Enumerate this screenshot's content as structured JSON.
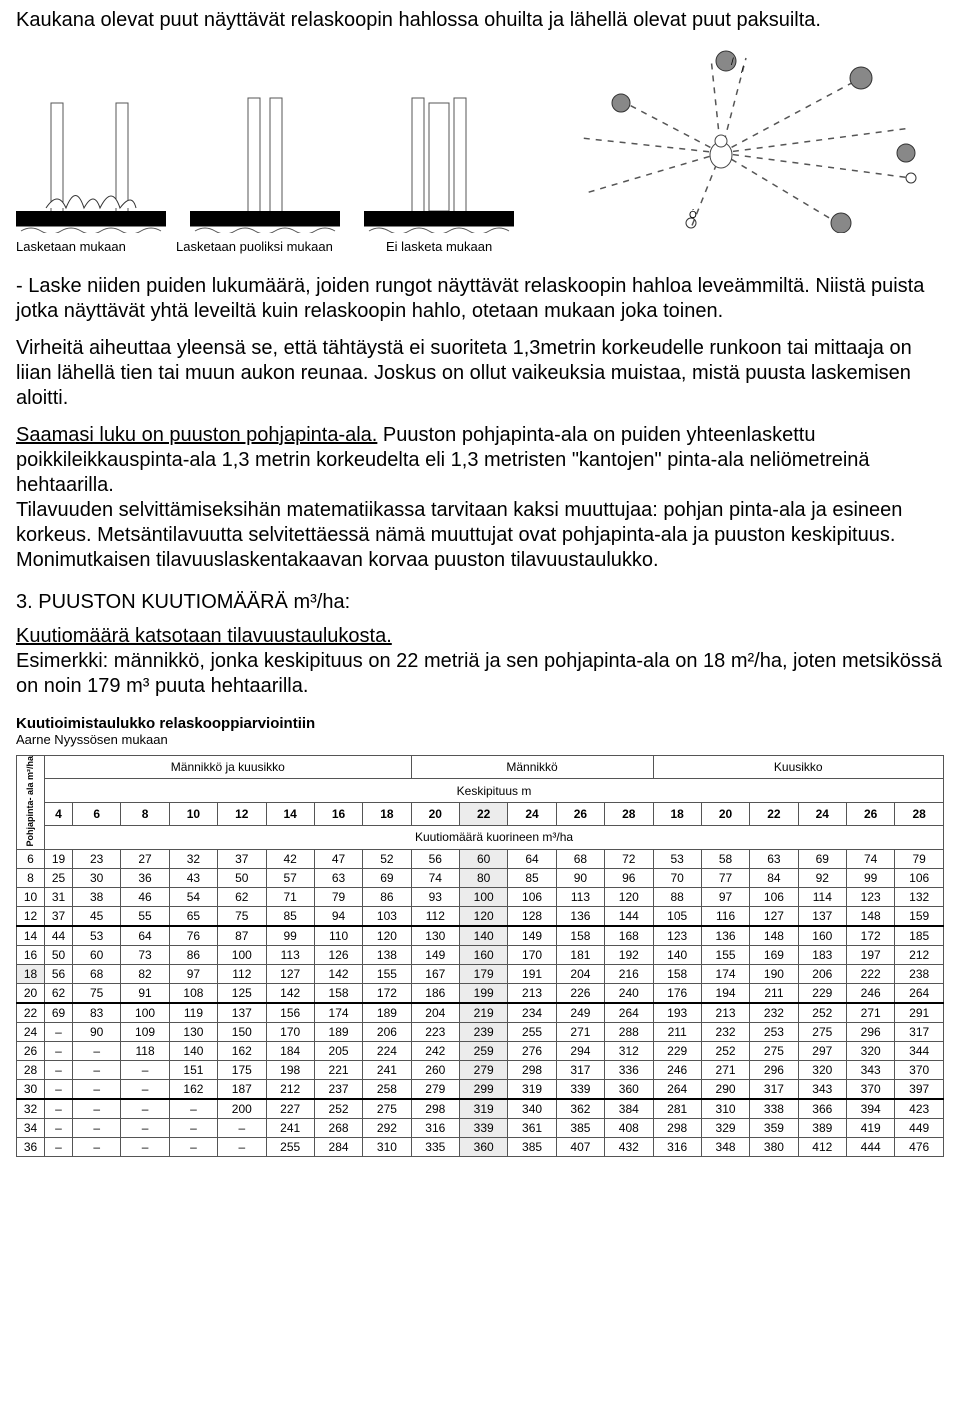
{
  "intro_para": "Kaukana olevat puut näyttävät relaskoopin hahlossa ohuilta ja lähellä olevat puut paksuilta.",
  "captions": {
    "c1": "Lasketaan mukaan",
    "c2": "Lasketaan puoliksi mukaan",
    "c3": "Ei lasketa mukaan"
  },
  "para2_a": "- Laske niiden puiden lukumäärä, joiden rungot näyttävät relaskoopin hahloa leveämmiltä. Niistä puista jotka näyttävät yhtä leveiltä kuin relaskoopin hahlo, otetaan mukaan joka toinen.",
  "para3": "Virheitä aiheuttaa yleensä se, että tähtäystä ei suoriteta 1,3metrin korkeudelle runkoon tai mittaaja on liian lähellä tien tai muun aukon reunaa. Joskus on ollut vaikeuksia muistaa, mistä puusta laskemisen aloitti.",
  "para4_a": "Saamasi luku on puuston pohjapinta-ala.",
  "para4_b": " Puuston pohjapinta-ala on puiden yhteenlaskettu poikkileikkauspinta-ala 1,3 metrin korkeudelta eli 1,3 metristen \"kantojen\" pinta-ala neliömetreinä hehtaarilla.",
  "para4_c": "Tilavuuden selvittämiseksihän matematiikassa tarvitaan kaksi muuttujaa: pohjan pinta-ala ja esineen korkeus. Metsäntilavuutta selvitettäessä nämä muuttujat ovat pohjapinta-ala ja puuston keskipituus. Monimutkaisen tilavuuslaskentakaavan korvaa puuston tilavuustaulukko.",
  "section3_title": "3.  PUUSTON KUUTIOMÄÄRÄ m³/ha:",
  "para5_a": "Kuutiomäärä katsotaan tilavuustaulukosta.",
  "para5_b": "Esimerkki: männikkö, jonka keskipituus on 22 metriä ja sen pohjapinta-ala on 18 m²/ha, joten metsikössä on noin 179 m³ puuta hehtaarilla.",
  "table": {
    "title": "Kuutioimistaulukko relaskooppiarviointiin",
    "subtitle": "Aarne Nyyssösen mukaan",
    "sidehead": "Pohjapinta-\nala m²/ha",
    "head_group1": "Männikkö ja kuusikko",
    "head_group2": "Männikkö",
    "head_group3": "Kuusikko",
    "head_mid": "Keskipituus m",
    "head_units": "Kuutiomäärä kuorineen m³/ha",
    "cols_a": [
      "4",
      "6",
      "8",
      "10",
      "12",
      "14",
      "16",
      "18",
      "20",
      "22",
      "24",
      "26",
      "28"
    ],
    "cols_b": [
      "18",
      "20",
      "22",
      "24",
      "26",
      "28"
    ],
    "rows": [
      {
        "h": "6",
        "a": [
          "19",
          "23",
          "27",
          "32",
          "37",
          "42",
          "47",
          "52",
          "56",
          "60",
          "64",
          "68",
          "72"
        ],
        "b": [
          "53",
          "58",
          "63",
          "69",
          "74",
          "79"
        ]
      },
      {
        "h": "8",
        "a": [
          "25",
          "30",
          "36",
          "43",
          "50",
          "57",
          "63",
          "69",
          "74",
          "80",
          "85",
          "90",
          "96"
        ],
        "b": [
          "70",
          "77",
          "84",
          "92",
          "99",
          "106"
        ]
      },
      {
        "h": "10",
        "a": [
          "31",
          "38",
          "46",
          "54",
          "62",
          "71",
          "79",
          "86",
          "93",
          "100",
          "106",
          "113",
          "120"
        ],
        "b": [
          "88",
          "97",
          "106",
          "114",
          "123",
          "132"
        ]
      },
      {
        "h": "12",
        "a": [
          "37",
          "45",
          "55",
          "65",
          "75",
          "85",
          "94",
          "103",
          "112",
          "120",
          "128",
          "136",
          "144"
        ],
        "b": [
          "105",
          "116",
          "127",
          "137",
          "148",
          "159"
        ]
      },
      {
        "h": "14",
        "a": [
          "44",
          "53",
          "64",
          "76",
          "87",
          "99",
          "110",
          "120",
          "130",
          "140",
          "149",
          "158",
          "168"
        ],
        "b": [
          "123",
          "136",
          "148",
          "160",
          "172",
          "185"
        ]
      },
      {
        "h": "16",
        "a": [
          "50",
          "60",
          "73",
          "86",
          "100",
          "113",
          "126",
          "138",
          "149",
          "160",
          "170",
          "181",
          "192"
        ],
        "b": [
          "140",
          "155",
          "169",
          "183",
          "197",
          "212"
        ]
      },
      {
        "h": "18",
        "a": [
          "56",
          "68",
          "82",
          "97",
          "112",
          "127",
          "142",
          "155",
          "167",
          "179",
          "191",
          "204",
          "216"
        ],
        "b": [
          "158",
          "174",
          "190",
          "206",
          "222",
          "238"
        ]
      },
      {
        "h": "20",
        "a": [
          "62",
          "75",
          "91",
          "108",
          "125",
          "142",
          "158",
          "172",
          "186",
          "199",
          "213",
          "226",
          "240"
        ],
        "b": [
          "176",
          "194",
          "211",
          "229",
          "246",
          "264"
        ]
      },
      {
        "h": "22",
        "a": [
          "69",
          "83",
          "100",
          "119",
          "137",
          "156",
          "174",
          "189",
          "204",
          "219",
          "234",
          "249",
          "264"
        ],
        "b": [
          "193",
          "213",
          "232",
          "252",
          "271",
          "291"
        ]
      },
      {
        "h": "24",
        "a": [
          "–",
          "90",
          "109",
          "130",
          "150",
          "170",
          "189",
          "206",
          "223",
          "239",
          "255",
          "271",
          "288"
        ],
        "b": [
          "211",
          "232",
          "253",
          "275",
          "296",
          "317"
        ]
      },
      {
        "h": "26",
        "a": [
          "–",
          "–",
          "118",
          "140",
          "162",
          "184",
          "205",
          "224",
          "242",
          "259",
          "276",
          "294",
          "312"
        ],
        "b": [
          "229",
          "252",
          "275",
          "297",
          "320",
          "344"
        ]
      },
      {
        "h": "28",
        "a": [
          "–",
          "–",
          "–",
          "151",
          "175",
          "198",
          "221",
          "241",
          "260",
          "279",
          "298",
          "317",
          "336"
        ],
        "b": [
          "246",
          "271",
          "296",
          "320",
          "343",
          "370"
        ]
      },
      {
        "h": "30",
        "a": [
          "–",
          "–",
          "–",
          "162",
          "187",
          "212",
          "237",
          "258",
          "279",
          "299",
          "319",
          "339",
          "360"
        ],
        "b": [
          "264",
          "290",
          "317",
          "343",
          "370",
          "397"
        ]
      },
      {
        "h": "32",
        "a": [
          "–",
          "–",
          "–",
          "–",
          "200",
          "227",
          "252",
          "275",
          "298",
          "319",
          "340",
          "362",
          "384"
        ],
        "b": [
          "281",
          "310",
          "338",
          "366",
          "394",
          "423"
        ]
      },
      {
        "h": "34",
        "a": [
          "–",
          "–",
          "–",
          "–",
          "–",
          "241",
          "268",
          "292",
          "316",
          "339",
          "361",
          "385",
          "408"
        ],
        "b": [
          "298",
          "329",
          "359",
          "389",
          "419",
          "449"
        ]
      },
      {
        "h": "36",
        "a": [
          "–",
          "–",
          "–",
          "–",
          "–",
          "255",
          "284",
          "310",
          "335",
          "360",
          "385",
          "407",
          "432"
        ],
        "b": [
          "316",
          "348",
          "380",
          "412",
          "444",
          "476"
        ]
      }
    ],
    "highlight_col_index": 9,
    "highlight_row_index": 6,
    "group_breaks": [
      4,
      8,
      13
    ]
  },
  "figure": {
    "ground_color": "#000000",
    "trunk_color": "#6b6b6b",
    "dash_color": "#555555",
    "node_color": "#777777"
  }
}
